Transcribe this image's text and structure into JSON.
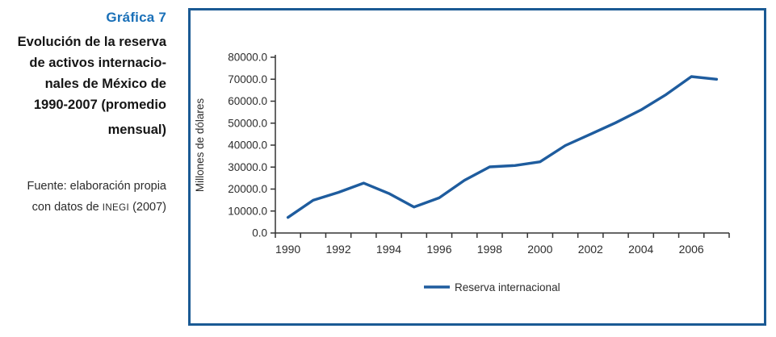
{
  "caption": {
    "label": "Gráfica 7",
    "title_lines": [
      "Evolución de la reserva",
      "de activos internacio-",
      "nales de México de",
      "1990-2007 (promedio",
      "mensual)"
    ],
    "source": {
      "line1": "Fuente: elaboración propia",
      "line2_pre": "con datos de ",
      "line2_org": "INEGI",
      "line2_suffix": " (2007)"
    }
  },
  "colors": {
    "series_line": "#1e5c9e",
    "panel_border": "#1a5a94",
    "caption_accent": "#1a70b8",
    "axis": "#333333"
  },
  "chart_data": {
    "type": "line",
    "title": "",
    "xlabel": "",
    "ylabel": "Millones de dólares",
    "grid": false,
    "categories": [
      1990,
      1991,
      1992,
      1993,
      1994,
      1995,
      1996,
      1997,
      1998,
      1999,
      2000,
      2001,
      2002,
      2003,
      2004,
      2005,
      2006,
      2007
    ],
    "series": [
      {
        "name": "Reserva internacional",
        "color": "#1e5c9e",
        "values": [
          7100,
          14900,
          18500,
          22700,
          18000,
          11800,
          16000,
          24000,
          30100,
          30700,
          32400,
          39800,
          45000,
          50200,
          56000,
          63000,
          71200,
          70000
        ]
      }
    ],
    "y_axis": {
      "min": 0,
      "max": 80000,
      "step": 10000,
      "decimals": 1
    },
    "x_tick_labels": [
      "1990",
      "1992",
      "1994",
      "1996",
      "1998",
      "2000",
      "2002",
      "2004",
      "2006"
    ],
    "legend": {
      "position": "bottom",
      "label": "Reserva internacional"
    }
  }
}
